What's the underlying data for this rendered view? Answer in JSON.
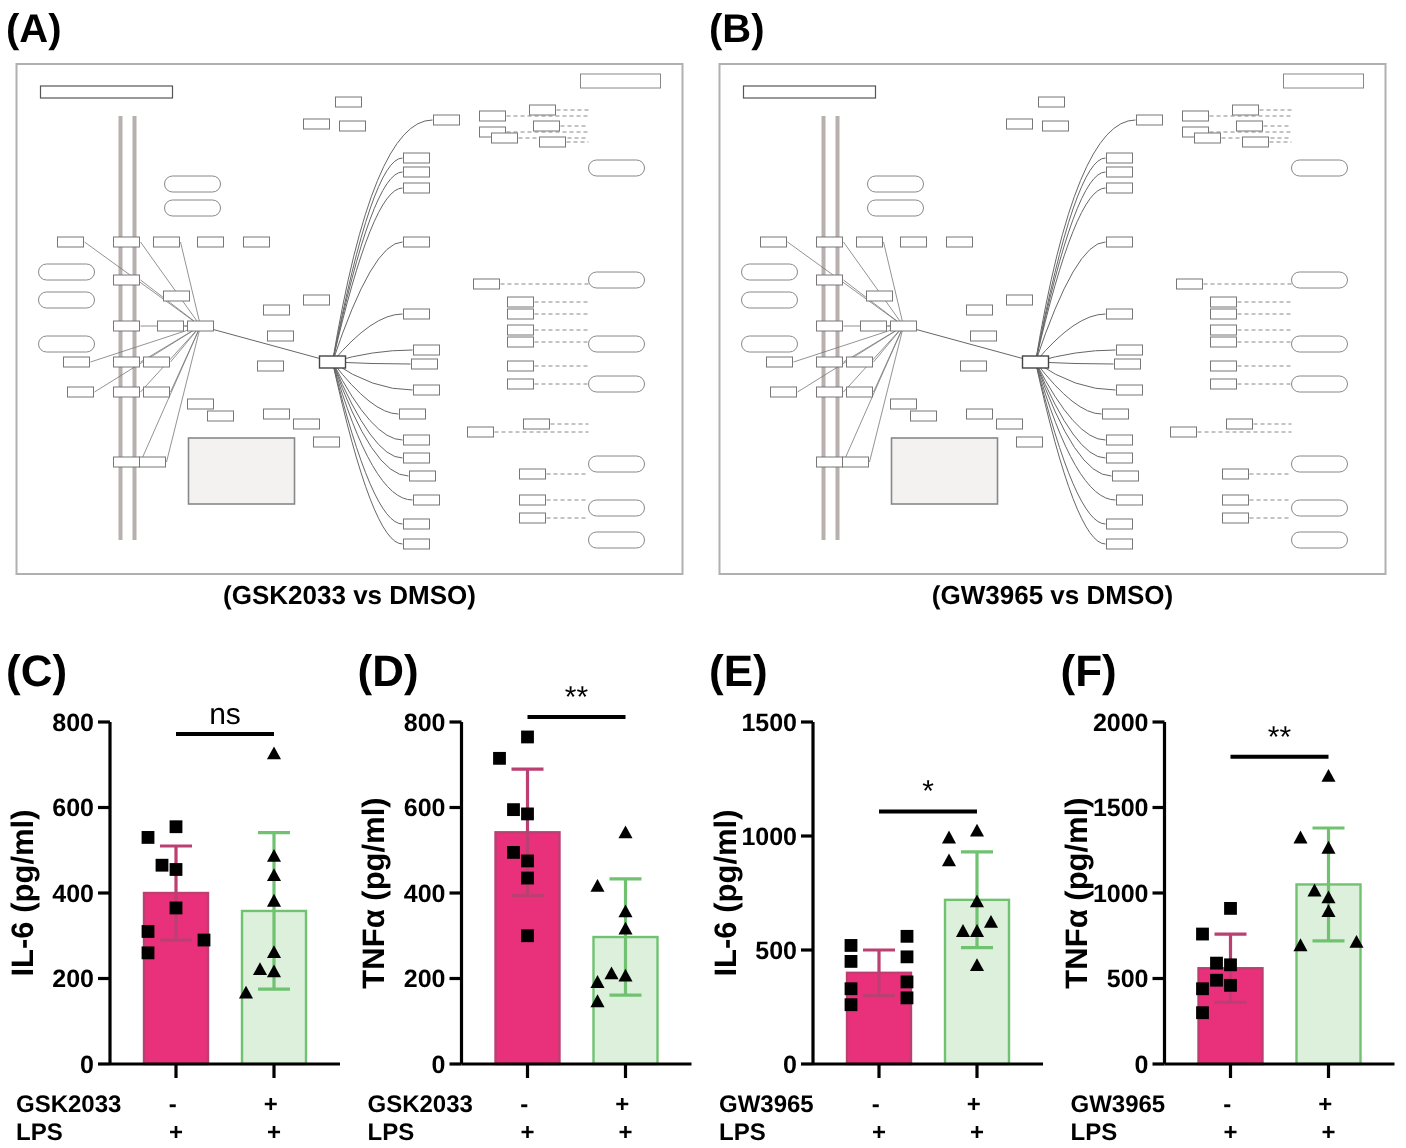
{
  "chart_data": [
    {
      "type": "other",
      "title": "(A)",
      "annotations": [
        "(GSK2033 vs DMSO)"
      ]
    },
    {
      "type": "other",
      "title": "(B)",
      "annotations": [
        "(GW3965 vs DMSO)"
      ]
    },
    {
      "type": "bar",
      "title": "(C)",
      "ylabel": "IL-6 (pg/ml)",
      "xlabel": "GSK2033\nLPS",
      "categories": [
        "-\n+",
        "+\n+"
      ],
      "ylim": [
        0,
        800
      ],
      "yticks": [
        0,
        200,
        400,
        600,
        800
      ],
      "series": [
        {
          "type": "bar",
          "colors": [
            "#e8317a",
            "#dcf0dc"
          ],
          "values": [
            400,
            358
          ],
          "errors": [
            110,
            183
          ]
        },
        {
          "type": "scatter",
          "marker": "square",
          "color": "#000000",
          "x": [
            "-\n+",
            "-\n+",
            "-\n+",
            "-\n+",
            "-\n+",
            "-\n+",
            "-\n+",
            "-\n+"
          ],
          "values": [
            555,
            530,
            465,
            455,
            365,
            310,
            290,
            260
          ]
        },
        {
          "type": "scatter",
          "marker": "triangle",
          "color": "#000000",
          "x": [
            "+\n+",
            "+\n+",
            "+\n+",
            "+\n+",
            "+\n+",
            "+\n+",
            "+\n+",
            "+\n+"
          ],
          "values": [
            725,
            485,
            440,
            380,
            260,
            220,
            215,
            165
          ]
        }
      ],
      "annotations": [
        "ns"
      ]
    },
    {
      "type": "bar",
      "title": "(D)",
      "ylabel": "TNFα (pg/ml)",
      "xlabel": "GSK2033\nLPS",
      "categories": [
        "-\n+",
        "+\n+"
      ],
      "ylim": [
        0,
        800
      ],
      "yticks": [
        0,
        200,
        400,
        600,
        800
      ],
      "series": [
        {
          "type": "bar",
          "colors": [
            "#e8317a",
            "#dcf0dc"
          ],
          "values": [
            542,
            297
          ],
          "errors": [
            148,
            136
          ]
        },
        {
          "type": "scatter",
          "marker": "square",
          "color": "#000000",
          "x": [
            "-\n+",
            "-\n+",
            "-\n+",
            "-\n+",
            "-\n+",
            "-\n+",
            "-\n+",
            "-\n+"
          ],
          "values": [
            765,
            715,
            595,
            585,
            495,
            475,
            435,
            300
          ]
        },
        {
          "type": "scatter",
          "marker": "triangle",
          "color": "#000000",
          "x": [
            "+\n+",
            "+\n+",
            "+\n+",
            "+\n+",
            "+\n+",
            "+\n+",
            "+\n+",
            "+\n+"
          ],
          "values": [
            540,
            415,
            355,
            315,
            210,
            205,
            190,
            145
          ]
        }
      ],
      "annotations": [
        "**"
      ]
    },
    {
      "type": "bar",
      "title": "(E)",
      "ylabel": "IL-6 (pg/ml)",
      "xlabel": "GW3965\nLPS",
      "categories": [
        "-\n+",
        "+\n+"
      ],
      "ylim": [
        0,
        1500
      ],
      "yticks": [
        0,
        500,
        1000,
        1500
      ],
      "series": [
        {
          "type": "bar",
          "colors": [
            "#e8317a",
            "#dcf0dc"
          ],
          "values": [
            400,
            720
          ],
          "errors": [
            100,
            210
          ]
        },
        {
          "type": "scatter",
          "marker": "square",
          "color": "#000000",
          "x": [
            "-\n+",
            "-\n+",
            "-\n+",
            "-\n+",
            "-\n+",
            "-\n+",
            "-\n+",
            "-\n+"
          ],
          "values": [
            560,
            520,
            470,
            450,
            360,
            330,
            290,
            260
          ]
        },
        {
          "type": "scatter",
          "marker": "triangle",
          "color": "#000000",
          "x": [
            "+\n+",
            "+\n+",
            "+\n+",
            "+\n+",
            "+\n+",
            "+\n+",
            "+\n+",
            "+\n+"
          ],
          "values": [
            1020,
            990,
            890,
            710,
            620,
            580,
            580,
            430
          ]
        }
      ],
      "annotations": [
        "*"
      ]
    },
    {
      "type": "bar",
      "title": "(F)",
      "ylabel": "TNFα (pg/ml)",
      "xlabel": "GW3965\nLPS",
      "categories": [
        "-\n+",
        "+\n+"
      ],
      "ylim": [
        0,
        2000
      ],
      "yticks": [
        0,
        500,
        1000,
        1500,
        2000
      ],
      "series": [
        {
          "type": "bar",
          "colors": [
            "#e8317a",
            "#dcf0dc"
          ],
          "values": [
            560,
            1050
          ],
          "errors": [
            200,
            330
          ]
        },
        {
          "type": "scatter",
          "marker": "square",
          "color": "#000000",
          "x": [
            "-\n+",
            "-\n+",
            "-\n+",
            "-\n+",
            "-\n+",
            "-\n+",
            "-\n+",
            "-\n+"
          ],
          "values": [
            910,
            760,
            590,
            580,
            490,
            460,
            440,
            300
          ]
        },
        {
          "type": "scatter",
          "marker": "triangle",
          "color": "#000000",
          "x": [
            "+\n+",
            "+\n+",
            "+\n+",
            "+\n+",
            "+\n+",
            "+\n+",
            "+\n+",
            "+\n+"
          ],
          "values": [
            1680,
            1320,
            1260,
            1010,
            970,
            890,
            710,
            690
          ]
        }
      ],
      "annotations": [
        "**"
      ]
    }
  ]
}
